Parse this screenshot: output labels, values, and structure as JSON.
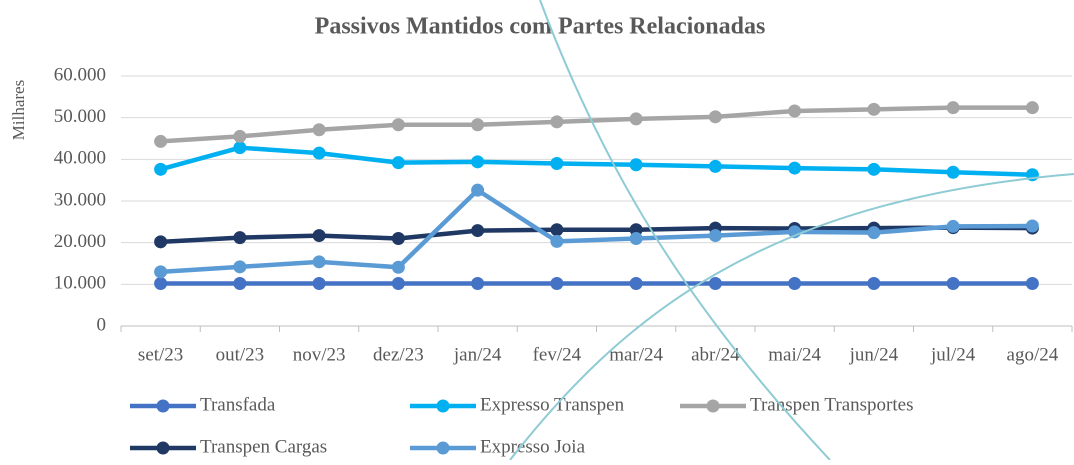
{
  "chart_data": {
    "type": "line",
    "title": "Passivos Mantidos com Partes Relacionadas",
    "y_label": "Milhares",
    "categories": [
      "set/23",
      "out/23",
      "nov/23",
      "dez/23",
      "jan/24",
      "fev/24",
      "mar/24",
      "abr/24",
      "mai/24",
      "jun/24",
      "jul/24",
      "ago/24"
    ],
    "series": [
      {
        "name": "Transfada",
        "color": "#4472c4",
        "values": [
          10200,
          10200,
          10200,
          10200,
          10200,
          10200,
          10200,
          10200,
          10200,
          10200,
          10200,
          10200
        ]
      },
      {
        "name": "Expresso Transpen",
        "color": "#00b0f0",
        "values": [
          37600,
          42800,
          41500,
          39200,
          39400,
          39000,
          38700,
          38300,
          37900,
          37600,
          36900,
          36300
        ]
      },
      {
        "name": "Transpen Transportes",
        "color": "#a5a5a5",
        "values": [
          44300,
          45500,
          47100,
          48300,
          48300,
          49000,
          49700,
          50200,
          51600,
          52000,
          52400,
          52400
        ]
      },
      {
        "name": "Transpen Cargas",
        "color": "#203864",
        "values": [
          20200,
          21200,
          21700,
          21000,
          22900,
          23100,
          23100,
          23500,
          23400,
          23500,
          23600,
          23500
        ]
      },
      {
        "name": "Expresso Joia",
        "color": "#5b9bd5",
        "values": [
          13000,
          14200,
          15400,
          14100,
          32600,
          20300,
          21000,
          21700,
          22600,
          22400,
          23900,
          24000
        ]
      }
    ],
    "ylim": [
      0,
      60000
    ],
    "yticks": [
      0,
      {
        "value": 10000,
        "label": "10.000"
      },
      {
        "value": 20000,
        "label": "20.000"
      },
      {
        "value": 30000,
        "label": "30.000"
      },
      {
        "value": 40000,
        "label": "40.000"
      },
      {
        "value": 50000,
        "label": "50.000"
      },
      {
        "value": 60000,
        "label": "60.000"
      }
    ],
    "grid": true,
    "legend": "bottom"
  }
}
